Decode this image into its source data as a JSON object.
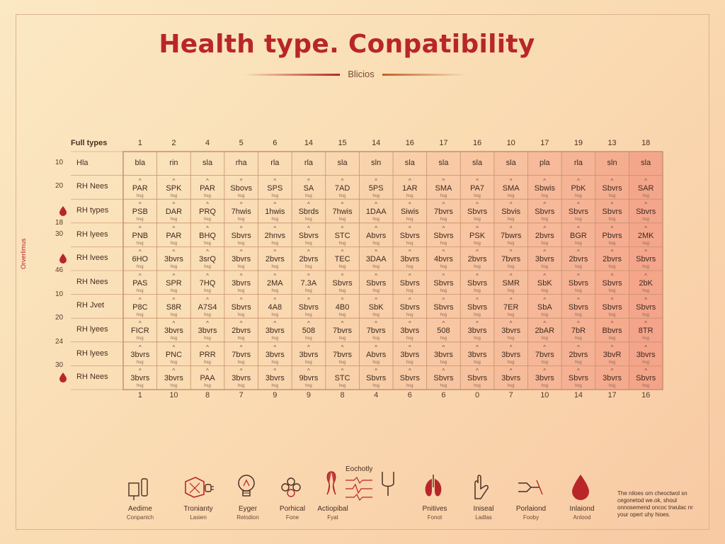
{
  "colors": {
    "accent": "#b8262a",
    "grid": "#c6906e",
    "heat": "#f08070",
    "background": "#fbe9c4"
  },
  "chart_data": {
    "type": "table",
    "title": "Health type. Conpatibility",
    "subtitle": "Blicios",
    "corner_label": "Full types",
    "y_axis_label": "Orverlimus",
    "column_headers": [
      "1",
      "2",
      "4",
      "5",
      "6",
      "14",
      "15",
      "14",
      "16",
      "17",
      "16",
      "10",
      "17",
      "19",
      "13",
      "18"
    ],
    "bottom_numbers": [
      "1",
      "10",
      "8",
      "7",
      "9",
      "9",
      "8",
      "4",
      "6",
      "6",
      "0",
      "7",
      "10",
      "14",
      "17",
      "16"
    ],
    "rows": [
      {
        "num": "10",
        "label": "Hla",
        "drop": false,
        "cells": [
          "bla",
          "rin",
          "sla",
          "rha",
          "rla",
          "rla",
          "sla",
          "sln",
          "sla",
          "sla",
          "sla",
          "sla",
          "pla",
          "rla",
          "sln",
          "sla"
        ],
        "subs": false
      },
      {
        "num": "20",
        "label": "RH Nees",
        "drop": false,
        "cells": [
          "PAR",
          "SPK",
          "PAR",
          "Sbovs",
          "SPS",
          "SA",
          "7AD",
          "5PS",
          "1AR",
          "SMA",
          "PA7",
          "SMA",
          "Sbwis",
          "PbK",
          "Sbvrs",
          "SAR"
        ],
        "subs": true
      },
      {
        "num": "",
        "label": "RH types",
        "drop": true,
        "cells": [
          "PSB",
          "DAR",
          "PRQ",
          "7hwis",
          "1hwis",
          "Sbrds",
          "7hwis",
          "1DAA",
          "Siwis",
          "7bvrs",
          "Sbvrs",
          "Sbvis",
          "Sbvrs",
          "Sbvrs",
          "Sbvrs",
          "Sbvrs"
        ],
        "subs": true
      },
      {
        "num": "18",
        "label": "",
        "drop": false,
        "cells": [],
        "subs": false
      },
      {
        "num": "30",
        "label": "RH lyees",
        "drop": false,
        "cells": [
          "PNB",
          "PAR",
          "BHQ",
          "Sbvrs",
          "2hnvs",
          "Sbvrs",
          "STC",
          "Abvrs",
          "Sbvrs",
          "Sbvrs",
          "PSK",
          "7bwrs",
          "2bvrs",
          "BGR",
          "Pbvrs",
          "2MK"
        ],
        "subs": true
      },
      {
        "num": "",
        "label": "RH lvees",
        "drop": true,
        "cells": [
          "6HO",
          "3bvrs",
          "3srQ",
          "3bvrs",
          "2bvrs",
          "2bvrs",
          "TEC",
          "3DAA",
          "3bvrs",
          "4bvrs",
          "2bvrs",
          "7bvrs",
          "3bvrs",
          "2bvrs",
          "2bvrs",
          "Sbvrs"
        ],
        "subs": true
      },
      {
        "num": "46",
        "label": "",
        "drop": false,
        "cells": [],
        "subs": false
      },
      {
        "num": "",
        "label": "RH Nees",
        "drop": false,
        "cells": [
          "PAS",
          "SPR",
          "7HQ",
          "3bvrs",
          "2MA",
          "7.3A",
          "Sbvrs",
          "Sbvrs",
          "Sbvrs",
          "Sbvrs",
          "Sbvrs",
          "SMR",
          "SbK",
          "Sbvrs",
          "Sbvrs",
          "2bK"
        ],
        "subs": true
      },
      {
        "num": "10",
        "label": "",
        "drop": false,
        "cells": [],
        "subs": false
      },
      {
        "num": "",
        "label": "RH Jvet",
        "drop": false,
        "cells": [
          "P8C",
          "S8R",
          "A7S4",
          "Sbvrs",
          "4A8",
          "Sbvrs",
          "4B0",
          "SbK",
          "Sbvrs",
          "Sbvrs",
          "Sbvrs",
          "7ER",
          "SbA",
          "Sbvrs",
          "Sbvrs",
          "Sbvrs"
        ],
        "subs": true
      },
      {
        "num": "20",
        "label": "",
        "drop": false,
        "cells": [],
        "subs": false
      },
      {
        "num": "",
        "label": "RH lyees",
        "drop": false,
        "cells": [
          "FICR",
          "3bvrs",
          "3bvrs",
          "2bvrs",
          "3bvrs",
          "508",
          "7bvrs",
          "7bvrs",
          "3bvrs",
          "508",
          "3bvrs",
          "3bvrs",
          "2bAR",
          "7bR",
          "Bbvrs",
          "8TR"
        ],
        "subs": true
      },
      {
        "num": "24",
        "label": "",
        "drop": false,
        "cells": [],
        "subs": false
      },
      {
        "num": "",
        "label": "RH lyees",
        "drop": false,
        "cells": [
          "3bvrs",
          "PNC",
          "PRR",
          "7bvrs",
          "3bvrs",
          "3bvrs",
          "7bvrs",
          "Abvrs",
          "3bvrs",
          "3bvrs",
          "3bvrs",
          "3bvrs",
          "7bvrs",
          "2bvrs",
          "3bvR",
          "3bvrs"
        ],
        "subs": true
      },
      {
        "num": "30",
        "label": "",
        "drop": false,
        "cells": [],
        "subs": false
      },
      {
        "num": "",
        "label": "RH Nees",
        "drop": true,
        "cells": [
          "3bvrs",
          "3bvrs",
          "PAA",
          "3bvrs",
          "3bvrs",
          "9bvrs",
          "STC",
          "Sbvrs",
          "Sbvrs",
          "Sbvrs",
          "Sbvrs",
          "3bvrs",
          "3bvrs",
          "Sbvrs",
          "3bvrs",
          "Sbvrs"
        ],
        "subs": true
      }
    ]
  },
  "icons": [
    {
      "icon": "cup-icon",
      "label": "Aedime",
      "sub": "Conpanich"
    },
    {
      "icon": "grid-plug-icon",
      "label": "Tronianty",
      "sub": "Lasien"
    },
    {
      "icon": "lightbulb-icon",
      "label": "Eyger",
      "sub": "Relodion"
    },
    {
      "icon": "clover-icon",
      "label": "Porhical",
      "sub": "Fone"
    },
    {
      "icon": "organ-icon",
      "label": "Actiopibal",
      "sub": "Fyat"
    },
    {
      "icon": "tuning-fork-icon",
      "label": "",
      "sub": ""
    },
    {
      "icon": "lungs-icon",
      "label": "Pnitives",
      "sub": "Fonot"
    },
    {
      "icon": "hand-icon",
      "label": "Iniseal",
      "sub": "Ladlas"
    },
    {
      "icon": "connector-icon",
      "label": "Porlaiond",
      "sub": "Fooby"
    },
    {
      "icon": "blood-drop-icon",
      "label": "Inlaiond",
      "sub": "Anlood"
    }
  ],
  "icons_heading": "Eochotly",
  "footnote": "The niloes om cheoctwol sn cegonetod we.ok, shoul onnosemend oncoc trwulac nr your opert uhy hioes."
}
